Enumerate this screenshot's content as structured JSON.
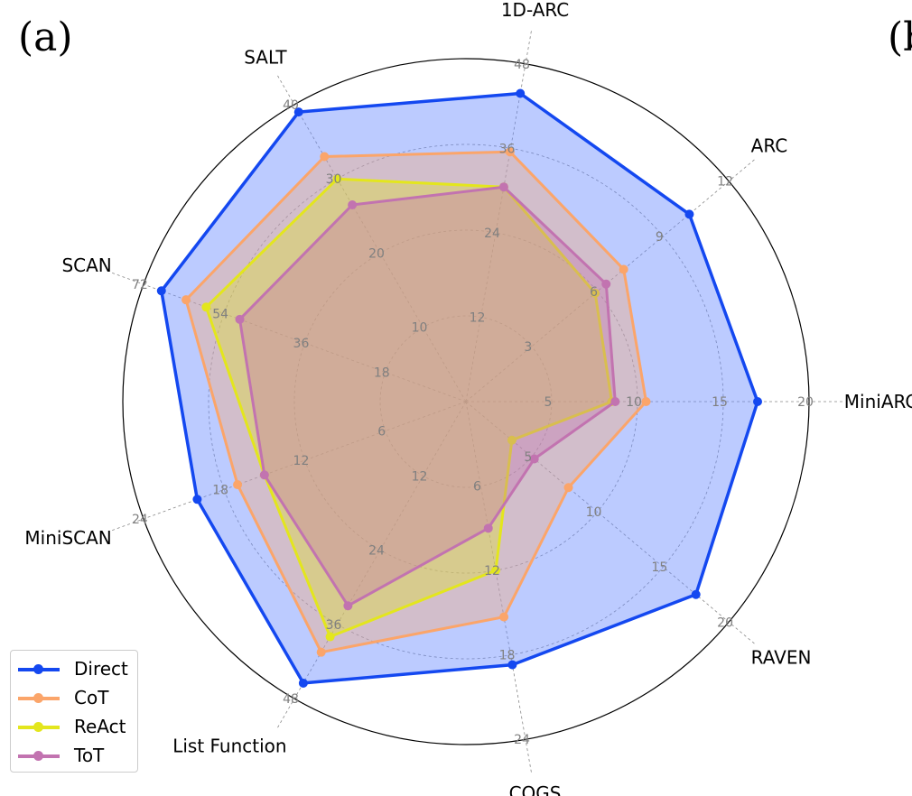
{
  "panel_labels": [
    "(a)",
    "(b"
  ],
  "chart_data": {
    "type": "radar",
    "axes": [
      {
        "name": "MiniARC",
        "max": 20,
        "ticks": [
          "5",
          "10",
          "15",
          "20"
        ]
      },
      {
        "name": "ARC",
        "max": 12,
        "ticks": [
          "3",
          "6",
          "9",
          "12"
        ]
      },
      {
        "name": "1D-ARC",
        "max": 48,
        "ticks": [
          "12",
          "24",
          "36",
          "48"
        ]
      },
      {
        "name": "SALT",
        "max": 40,
        "ticks": [
          "10",
          "20",
          "30",
          "40"
        ]
      },
      {
        "name": "SCAN",
        "max": 72,
        "ticks": [
          "18",
          "36",
          "54",
          "72"
        ]
      },
      {
        "name": "MiniSCAN",
        "max": 24,
        "ticks": [
          "6",
          "12",
          "18",
          "24"
        ]
      },
      {
        "name": "List Function",
        "max": 48,
        "ticks": [
          "12",
          "24",
          "36",
          "48"
        ]
      },
      {
        "name": "COGS",
        "max": 24,
        "ticks": [
          "6",
          "12",
          "18",
          "24"
        ]
      },
      {
        "name": "RAVEN",
        "max": 20,
        "ticks": [
          "5",
          "10",
          "15",
          "20"
        ]
      }
    ],
    "series": [
      {
        "name": "Direct",
        "color": "#1448f0",
        "fill": "#6b8cff",
        "fill_opacity": 0.45,
        "values": [
          17.0,
          10.2,
          43.8,
          39.0,
          68.0,
          20.0,
          45.5,
          18.7,
          17.5
        ]
      },
      {
        "name": "CoT",
        "color": "#fba56a",
        "fill": "#fba56a",
        "fill_opacity": 0.35,
        "values": [
          10.5,
          7.2,
          35.5,
          33.0,
          62.5,
          17.0,
          40.5,
          15.3,
          7.8
        ]
      },
      {
        "name": "ReAct",
        "color": "#e3e61d",
        "fill": "#e3e61d",
        "fill_opacity": 0.35,
        "values": [
          8.5,
          5.9,
          30.5,
          30.0,
          58.0,
          15.0,
          38.0,
          12.0,
          3.5
        ]
      },
      {
        "name": "ToT",
        "color": "#c273b0",
        "fill": "#c273b0",
        "fill_opacity": 0.35,
        "values": [
          8.7,
          6.4,
          30.5,
          26.5,
          50.5,
          15.0,
          33.0,
          9.0,
          5.2
        ]
      }
    ],
    "grid": true,
    "legend_position": "bottom-left"
  }
}
